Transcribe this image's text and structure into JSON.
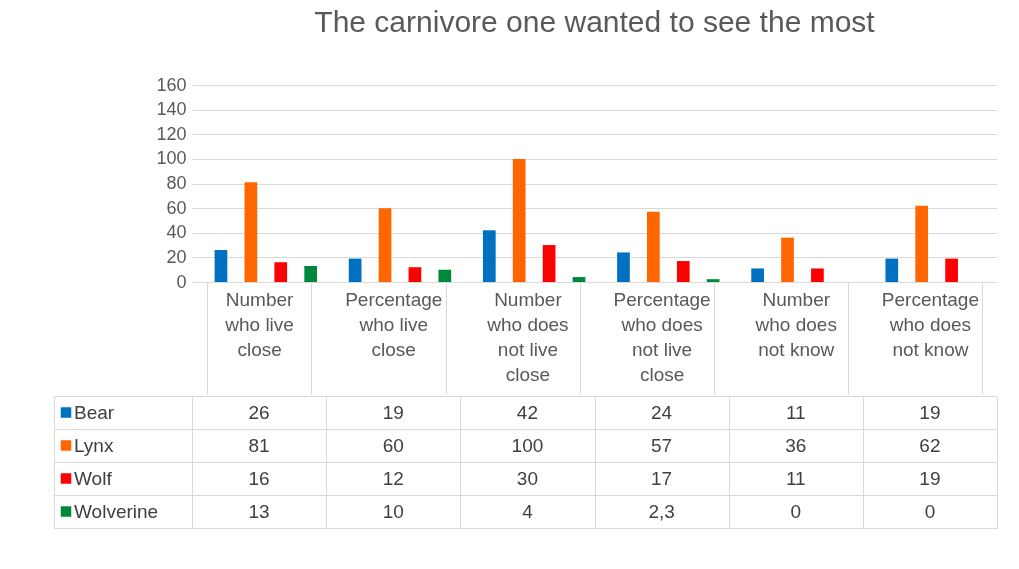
{
  "chart_data": {
    "type": "bar",
    "title": "The carnivore one wanted to see the most",
    "categories": [
      "Number who live close",
      "Percentage who live close",
      "Number who does not live close",
      "Percentage who does not live close",
      "Number who does not know",
      "Percentage who does not know"
    ],
    "series": [
      {
        "name": "Bear",
        "color": "#0070c0",
        "values": [
          26,
          19,
          42,
          24,
          11,
          19
        ],
        "value_labels": [
          "26",
          "19",
          "42",
          "24",
          "11",
          "19"
        ]
      },
      {
        "name": "Lynx",
        "color": "#ff6600",
        "values": [
          81,
          60,
          100,
          57,
          36,
          62
        ],
        "value_labels": [
          "81",
          "60",
          "100",
          "57",
          "36",
          "62"
        ]
      },
      {
        "name": "Wolf",
        "color": "#ff0000",
        "values": [
          16,
          12,
          30,
          17,
          11,
          19
        ],
        "value_labels": [
          "16",
          "12",
          "30",
          "17",
          "11",
          "19"
        ]
      },
      {
        "name": "Wolverine",
        "color": "#00883a",
        "values": [
          13,
          10,
          4,
          2.3,
          0,
          0
        ],
        "value_labels": [
          "13",
          "10",
          "4",
          "2,3",
          "0",
          "0"
        ]
      }
    ],
    "ylim": [
      0,
      160
    ],
    "yticks": [
      0,
      20,
      40,
      60,
      80,
      100,
      120,
      140,
      160
    ],
    "grid": "y",
    "legend": "bottom"
  }
}
